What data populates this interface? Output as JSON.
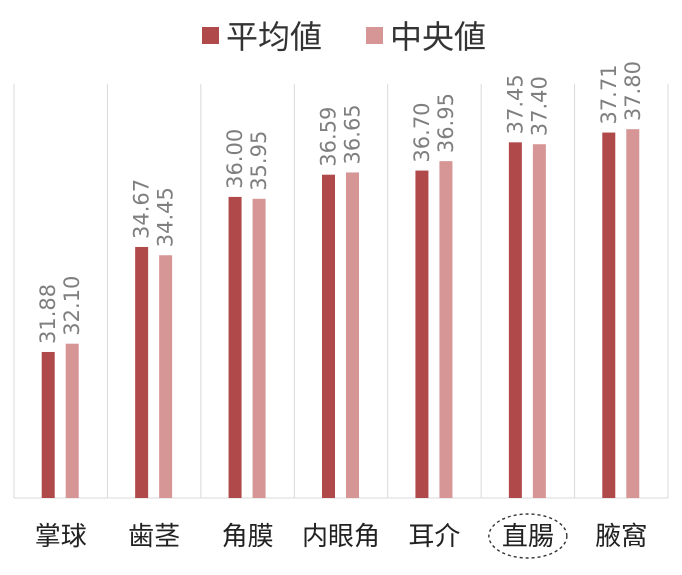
{
  "chart_data": {
    "type": "bar",
    "title": "",
    "xlabel": "",
    "ylabel": "",
    "ylim": [
      28,
      39
    ],
    "grid": "vertical separators between categories",
    "legend_position": "top",
    "categories": [
      "掌球",
      "歯茎",
      "角膜",
      "内眼角",
      "耳介",
      "直腸",
      "腋窩"
    ],
    "highlighted_category": "直腸",
    "series": [
      {
        "name": "平均値",
        "color": "#b04a4a",
        "values": [
          31.88,
          34.67,
          36.0,
          36.59,
          36.7,
          37.45,
          37.71
        ],
        "labels": [
          "31.88",
          "34.67",
          "36.00",
          "36.59",
          "36.70",
          "37.45",
          "37.71"
        ]
      },
      {
        "name": "中央値",
        "color": "#d69696",
        "values": [
          32.1,
          34.45,
          35.95,
          36.65,
          36.95,
          37.4,
          37.8
        ],
        "labels": [
          "32.10",
          "34.45",
          "35.95",
          "36.65",
          "36.95",
          "37.40",
          "37.80"
        ]
      }
    ]
  }
}
